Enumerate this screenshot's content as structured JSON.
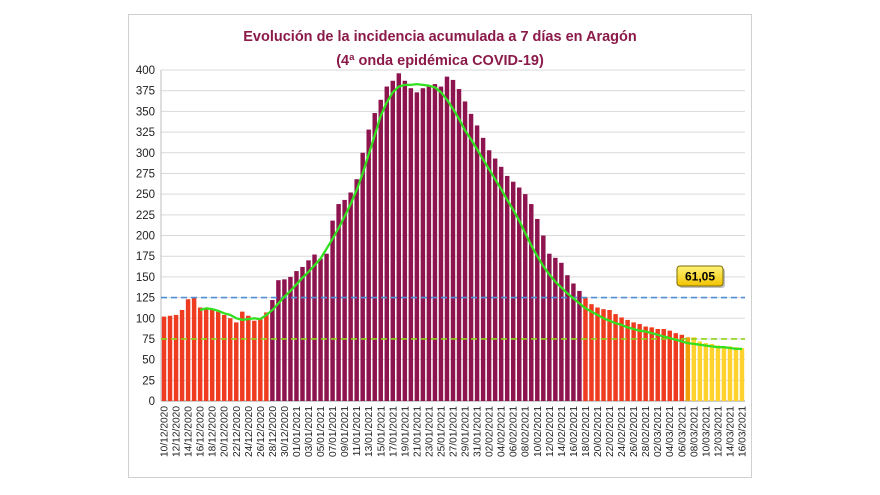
{
  "chart_data": {
    "type": "bar",
    "title": "Evolución de la incidencia acumulada  a 7 días en Aragón",
    "subtitle": "(4ª onda epidémica COVID-19)",
    "ylim": [
      0,
      400
    ],
    "y_ticks": [
      0,
      25,
      50,
      75,
      100,
      125,
      150,
      175,
      200,
      225,
      250,
      275,
      300,
      325,
      350,
      375,
      400
    ],
    "grid": true,
    "legend": "none",
    "start_date": "10/12/2020",
    "x_tick_labels": [
      "10/12/2020",
      "12/12/2020",
      "14/12/2020",
      "16/12/2020",
      "18/12/2020",
      "20/12/2020",
      "22/12/2020",
      "24/12/2020",
      "26/12/2020",
      "28/12/2020",
      "30/12/2020",
      "01/01/2021",
      "03/01/2021",
      "05/01/2021",
      "07/01/2021",
      "09/01/2021",
      "11/01/2021",
      "13/01/2021",
      "15/01/2021",
      "17/01/2021",
      "19/01/2021",
      "21/01/2021",
      "23/01/2021",
      "25/01/2021",
      "27/01/2021",
      "29/01/2021",
      "31/01/2021",
      "02/02/2021",
      "04/02/2021",
      "06/02/2021",
      "08/02/2021",
      "10/02/2021",
      "12/02/2021",
      "14/02/2021",
      "16/02/2021",
      "18/02/2021",
      "20/02/2021",
      "22/02/2021",
      "24/02/2021",
      "26/02/2021",
      "28/02/2021",
      "02/03/2021",
      "04/03/2021",
      "06/03/2021",
      "08/03/2021",
      "10/03/2021",
      "12/03/2021",
      "14/03/2021",
      "16/03/2021"
    ],
    "values": [
      102,
      103,
      104,
      110,
      123,
      125,
      113,
      112,
      110,
      108,
      104,
      100,
      95,
      108,
      103,
      97,
      99,
      107,
      122,
      146,
      147,
      150,
      157,
      162,
      170,
      177,
      172,
      178,
      218,
      238,
      243,
      252,
      268,
      300,
      328,
      348,
      364,
      380,
      387,
      396,
      387,
      378,
      373,
      378,
      381,
      383,
      380,
      392,
      388,
      377,
      362,
      347,
      333,
      318,
      303,
      293,
      283,
      272,
      265,
      258,
      250,
      238,
      220,
      200,
      178,
      173,
      167,
      152,
      142,
      133,
      125,
      117,
      113,
      111,
      110,
      105,
      101,
      98,
      95,
      93,
      90,
      89,
      87,
      87,
      85,
      82,
      80,
      77,
      77,
      72,
      70,
      69,
      67,
      66,
      66,
      65,
      64
    ],
    "bar_colors": {
      "red": "#ef3b1f",
      "purple": "#8e1450",
      "orange": "#f0a10a",
      "yellow": "#ffd22e"
    },
    "color_segments": [
      {
        "color": "red",
        "from": 0,
        "to": 17
      },
      {
        "color": "purple",
        "from": 18,
        "to": 69
      },
      {
        "color": "red",
        "from": 70,
        "to": 86
      },
      {
        "color": "orange",
        "from": 87,
        "to": 87
      },
      {
        "color": "yellow",
        "from": 88,
        "to": 96
      }
    ],
    "moving_average": [
      null,
      null,
      null,
      null,
      null,
      null,
      110,
      112,
      111,
      109,
      106,
      104,
      100,
      98,
      99,
      100,
      99,
      104,
      110,
      118,
      126,
      133,
      141,
      149,
      156,
      164,
      172,
      184,
      196,
      209,
      223,
      238,
      255,
      275,
      298,
      321,
      345,
      361,
      373,
      380,
      382,
      382,
      383,
      382,
      381,
      379,
      373,
      364,
      353,
      341,
      327,
      316,
      304,
      292,
      280,
      268,
      256,
      243,
      231,
      218,
      203,
      188,
      175,
      163,
      153,
      144,
      137,
      130,
      124,
      118,
      112,
      108,
      104,
      100,
      97,
      94,
      92,
      89,
      87,
      85,
      84,
      82,
      80,
      78,
      76,
      74,
      72,
      70,
      69,
      68,
      67,
      66,
      65,
      65,
      64,
      63,
      63
    ],
    "moving_average_color": "#33e01f",
    "reference_lines": [
      {
        "value": 125,
        "color": "#4f8fd6",
        "style": "dashed"
      },
      {
        "value": 75,
        "color": "#8fd21a",
        "style": "dashed"
      }
    ],
    "callout": {
      "label": "61,05",
      "value": 61.05,
      "fill": "#ffd700"
    }
  }
}
